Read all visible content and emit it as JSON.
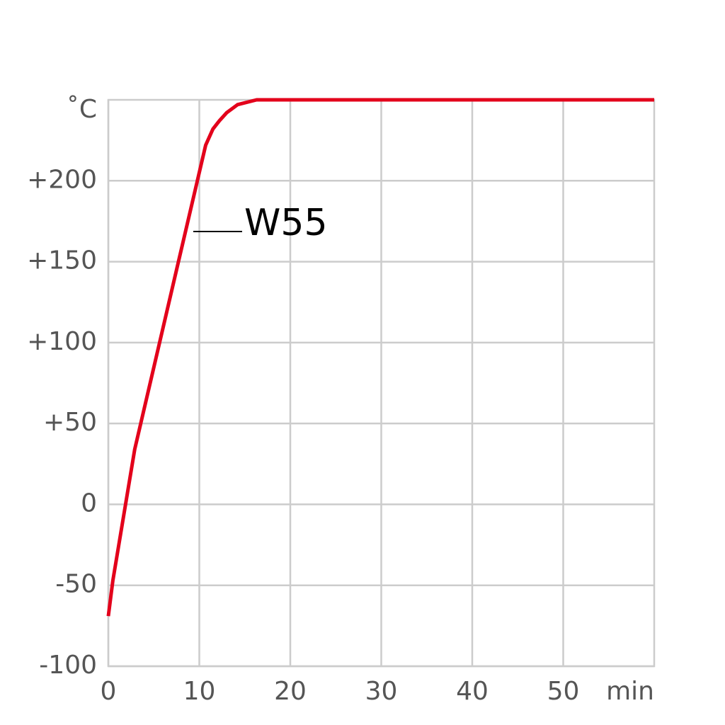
{
  "chart_data": {
    "type": "line",
    "y_label": "˚C",
    "x_label": "min",
    "x": [
      0,
      0.5,
      2.9,
      7.5,
      10.7,
      11.5,
      12.2,
      13,
      14.2,
      16.3,
      60
    ],
    "series": [
      {
        "name": "W55",
        "color": "#e3001b",
        "values": [
          -69,
          -47,
          34,
          145,
          222,
          232,
          237,
          242,
          247,
          250,
          250
        ]
      }
    ],
    "xlim": [
      0,
      60
    ],
    "xticks": [
      0,
      10,
      20,
      30,
      40,
      50
    ],
    "ylim": [
      -100,
      250
    ],
    "yticks": [
      -100,
      -50,
      0,
      {
        "value": 50,
        "label": "+50"
      },
      {
        "value": 100,
        "label": "+100"
      },
      {
        "value": 150,
        "label": "+150"
      },
      {
        "value": 200,
        "label": "+200"
      }
    ],
    "grid": true
  }
}
